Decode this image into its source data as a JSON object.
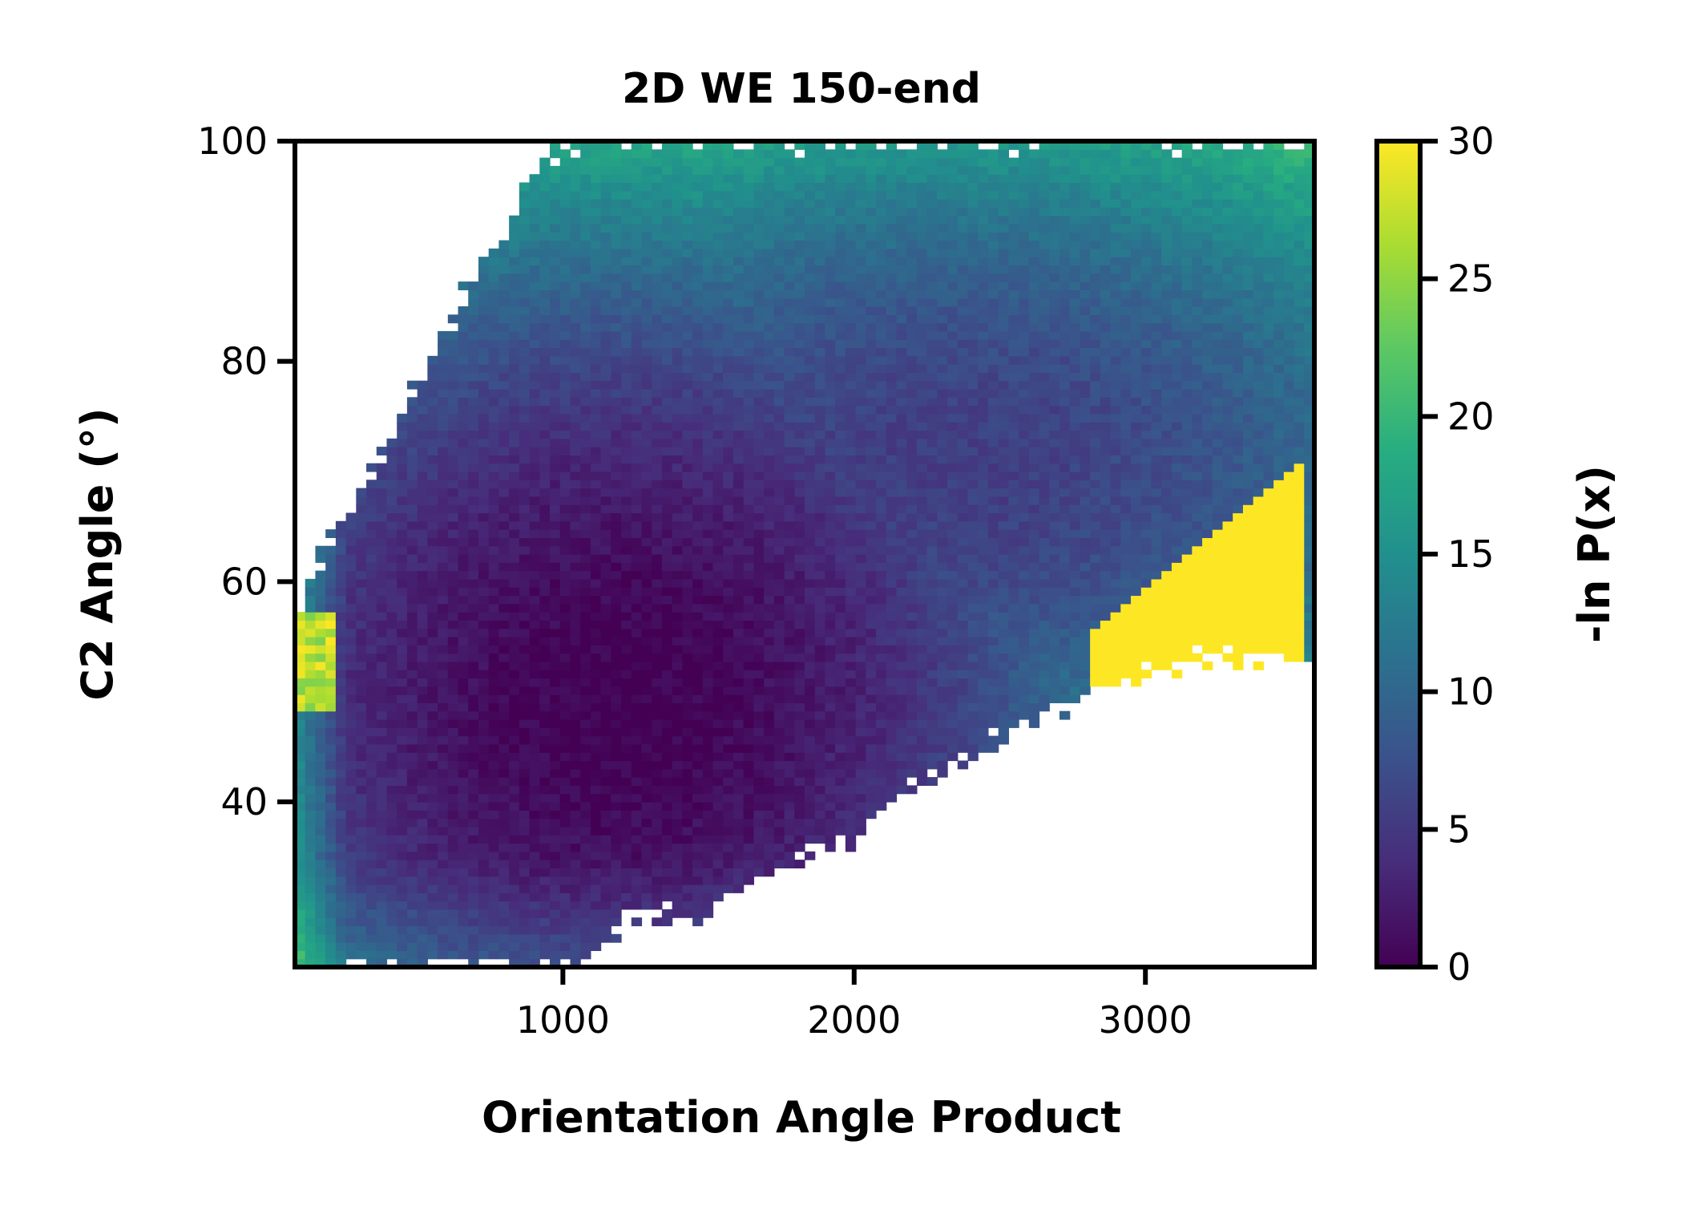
{
  "chart_data": {
    "type": "heatmap",
    "title": "2D WE 150-end",
    "xlabel": "Orientation Angle Product",
    "ylabel": "C2 Angle (°)",
    "xlim": [
      80,
      3580
    ],
    "ylim": [
      25,
      100
    ],
    "xticks": [
      1000,
      2000,
      3000
    ],
    "yticks": [
      40,
      60,
      80,
      100
    ],
    "colorbar": {
      "label": "-ln P(x)",
      "range": [
        0,
        30
      ],
      "ticks": [
        0,
        5,
        10,
        15,
        20,
        25,
        30
      ],
      "colormap": "viridis",
      "colors": [
        "#440154",
        "#472c7a",
        "#3b518b",
        "#2c718e",
        "#21908d",
        "#27ad81",
        "#5cc863",
        "#aadc32",
        "#fde725"
      ]
    },
    "grid": false,
    "peak": {
      "x": 1200,
      "y": 49,
      "value": 0
    },
    "secondary_basin": {
      "x": 2300,
      "y": 70,
      "value": 5.5
    },
    "saturated_region": {
      "x_min": 2800,
      "x_max": 3550,
      "y_min": 44,
      "y_max": 72,
      "value": 30
    }
  }
}
